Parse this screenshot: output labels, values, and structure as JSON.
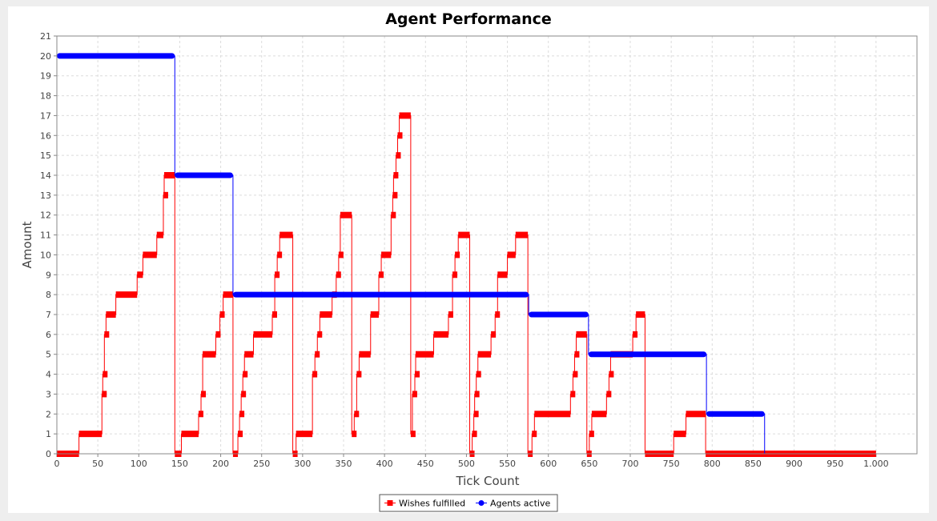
{
  "chart_data": {
    "type": "line",
    "title": "Agent Performance",
    "xlabel": "Tick Count",
    "ylabel": "Amount",
    "xlim": [
      0,
      1050
    ],
    "ylim": [
      0,
      21
    ],
    "x_ticks": [
      0,
      50,
      100,
      150,
      200,
      250,
      300,
      350,
      400,
      450,
      500,
      550,
      600,
      650,
      700,
      750,
      800,
      850,
      900,
      950,
      1000
    ],
    "x_tick_labels": [
      "0",
      "50",
      "100",
      "150",
      "200",
      "250",
      "300",
      "350",
      "400",
      "450",
      "500",
      "550",
      "600",
      "650",
      "700",
      "750",
      "800",
      "850",
      "900",
      "950",
      "1.000"
    ],
    "y_ticks": [
      0,
      1,
      2,
      3,
      4,
      5,
      6,
      7,
      8,
      9,
      10,
      11,
      12,
      13,
      14,
      15,
      16,
      17,
      18,
      19,
      20,
      21
    ],
    "grid": true,
    "legend_position": "bottom-center",
    "series": [
      {
        "name": "Wishes fulfilled",
        "color": "#ff0000",
        "marker": "square",
        "steps": [
          [
            0,
            0
          ],
          [
            27,
            1
          ],
          [
            55,
            3
          ],
          [
            56,
            4
          ],
          [
            58,
            6
          ],
          [
            60,
            7
          ],
          [
            72,
            8
          ],
          [
            98,
            9
          ],
          [
            105,
            10
          ],
          [
            122,
            11
          ],
          [
            130,
            13
          ],
          [
            131,
            14
          ],
          [
            144,
            0
          ],
          [
            152,
            1
          ],
          [
            173,
            2
          ],
          [
            176,
            3
          ],
          [
            178,
            5
          ],
          [
            194,
            6
          ],
          [
            199,
            7
          ],
          [
            203,
            8
          ],
          [
            215,
            0
          ],
          [
            221,
            1
          ],
          [
            223,
            2
          ],
          [
            225,
            3
          ],
          [
            227,
            4
          ],
          [
            229,
            5
          ],
          [
            240,
            6
          ],
          [
            263,
            7
          ],
          [
            266,
            9
          ],
          [
            269,
            10
          ],
          [
            272,
            11
          ],
          [
            288,
            0
          ],
          [
            292,
            1
          ],
          [
            312,
            4
          ],
          [
            315,
            5
          ],
          [
            318,
            6
          ],
          [
            321,
            7
          ],
          [
            336,
            8
          ],
          [
            341,
            9
          ],
          [
            344,
            10
          ],
          [
            346,
            12
          ],
          [
            360,
            1
          ],
          [
            363,
            2
          ],
          [
            366,
            4
          ],
          [
            369,
            5
          ],
          [
            383,
            7
          ],
          [
            393,
            9
          ],
          [
            396,
            10
          ],
          [
            408,
            12
          ],
          [
            410,
            13
          ],
          [
            411,
            14
          ],
          [
            414,
            15
          ],
          [
            416,
            16
          ],
          [
            418,
            17
          ],
          [
            432,
            1
          ],
          [
            434,
            3
          ],
          [
            437,
            4
          ],
          [
            438,
            5
          ],
          [
            460,
            6
          ],
          [
            478,
            7
          ],
          [
            483,
            9
          ],
          [
            486,
            10
          ],
          [
            490,
            11
          ],
          [
            504,
            0
          ],
          [
            507,
            1
          ],
          [
            509,
            2
          ],
          [
            510,
            3
          ],
          [
            512,
            4
          ],
          [
            514,
            5
          ],
          [
            530,
            6
          ],
          [
            535,
            7
          ],
          [
            538,
            9
          ],
          [
            550,
            10
          ],
          [
            560,
            11
          ],
          [
            575,
            0
          ],
          [
            580,
            1
          ],
          [
            583,
            2
          ],
          [
            627,
            3
          ],
          [
            630,
            4
          ],
          [
            632,
            5
          ],
          [
            634,
            6
          ],
          [
            647,
            0
          ],
          [
            650,
            1
          ],
          [
            653,
            2
          ],
          [
            671,
            3
          ],
          [
            674,
            4
          ],
          [
            676,
            5
          ],
          [
            703,
            6
          ],
          [
            707,
            7
          ],
          [
            718,
            0
          ],
          [
            753,
            1
          ],
          [
            768,
            2
          ],
          [
            792,
            0
          ],
          [
            1000,
            0
          ]
        ]
      },
      {
        "name": "Agents active",
        "color": "#0000ff",
        "marker": "circle",
        "steps": [
          [
            0,
            20
          ],
          [
            144,
            14
          ],
          [
            215,
            8
          ],
          [
            576,
            7
          ],
          [
            649,
            5
          ],
          [
            793,
            2
          ],
          [
            864,
            0
          ]
        ]
      }
    ]
  }
}
